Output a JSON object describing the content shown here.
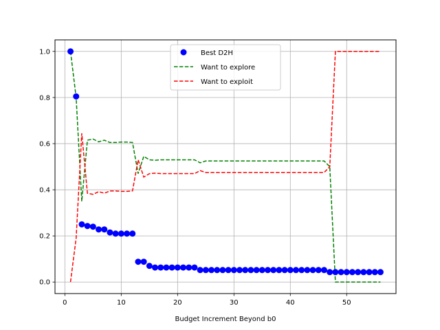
{
  "chart_data": {
    "type": "line",
    "title": "",
    "xlabel": "Budget Increment Beyond b0",
    "ylabel": "",
    "xlim": [
      -1.75,
      58.75
    ],
    "ylim": [
      -0.05,
      1.05
    ],
    "xticks": [
      "0",
      "10",
      "20",
      "30",
      "40",
      "50"
    ],
    "yticks": [
      "0.0",
      "0.2",
      "0.4",
      "0.6",
      "0.8",
      "1.0"
    ],
    "grid": true,
    "legend_position": "upper center",
    "x": [
      1,
      2,
      3,
      4,
      5,
      6,
      7,
      8,
      9,
      10,
      11,
      12,
      13,
      14,
      15,
      16,
      17,
      18,
      19,
      20,
      21,
      22,
      23,
      24,
      25,
      26,
      27,
      28,
      29,
      30,
      31,
      32,
      33,
      34,
      35,
      36,
      37,
      38,
      39,
      40,
      41,
      42,
      43,
      44,
      45,
      46,
      47,
      48,
      49,
      50,
      51,
      52,
      53,
      54,
      55,
      56
    ],
    "series": [
      {
        "name": "Best D2H",
        "kind": "scatter",
        "color": "#0000ff",
        "values": [
          1.0,
          0.805,
          0.25,
          0.243,
          0.24,
          0.228,
          0.228,
          0.215,
          0.21,
          0.21,
          0.21,
          0.21,
          0.088,
          0.088,
          0.07,
          0.063,
          0.063,
          0.063,
          0.063,
          0.063,
          0.063,
          0.063,
          0.063,
          0.052,
          0.052,
          0.052,
          0.052,
          0.052,
          0.052,
          0.052,
          0.052,
          0.052,
          0.052,
          0.052,
          0.052,
          0.052,
          0.052,
          0.052,
          0.052,
          0.052,
          0.052,
          0.052,
          0.052,
          0.052,
          0.052,
          0.052,
          0.043,
          0.043,
          0.043,
          0.043,
          0.043,
          0.043,
          0.043,
          0.043,
          0.043,
          0.043
        ]
      },
      {
        "name": "Want to explore",
        "kind": "dashed-line",
        "color": "#008000",
        "values": [
          1.0,
          0.8,
          0.35,
          0.615,
          0.62,
          0.608,
          0.615,
          0.605,
          0.605,
          0.607,
          0.607,
          0.605,
          0.47,
          0.545,
          0.53,
          0.528,
          0.53,
          0.53,
          0.53,
          0.53,
          0.53,
          0.53,
          0.53,
          0.517,
          0.525,
          0.525,
          0.525,
          0.525,
          0.525,
          0.525,
          0.525,
          0.525,
          0.525,
          0.525,
          0.525,
          0.525,
          0.525,
          0.525,
          0.525,
          0.525,
          0.525,
          0.525,
          0.525,
          0.525,
          0.525,
          0.525,
          0.5,
          0.0,
          0.0,
          0.0,
          0.0,
          0.0,
          0.0,
          0.0,
          0.0,
          0.0
        ]
      },
      {
        "name": "Want to exploit",
        "kind": "dashed-line",
        "color": "#ff0000",
        "values": [
          0.0,
          0.19,
          0.645,
          0.385,
          0.38,
          0.392,
          0.385,
          0.395,
          0.395,
          0.393,
          0.393,
          0.395,
          0.53,
          0.455,
          0.47,
          0.472,
          0.47,
          0.47,
          0.47,
          0.47,
          0.47,
          0.47,
          0.47,
          0.483,
          0.475,
          0.475,
          0.475,
          0.475,
          0.475,
          0.475,
          0.475,
          0.475,
          0.475,
          0.475,
          0.475,
          0.475,
          0.475,
          0.475,
          0.475,
          0.475,
          0.475,
          0.475,
          0.475,
          0.475,
          0.475,
          0.475,
          0.5,
          1.0,
          1.0,
          1.0,
          1.0,
          1.0,
          1.0,
          1.0,
          1.0,
          1.0
        ]
      }
    ]
  }
}
